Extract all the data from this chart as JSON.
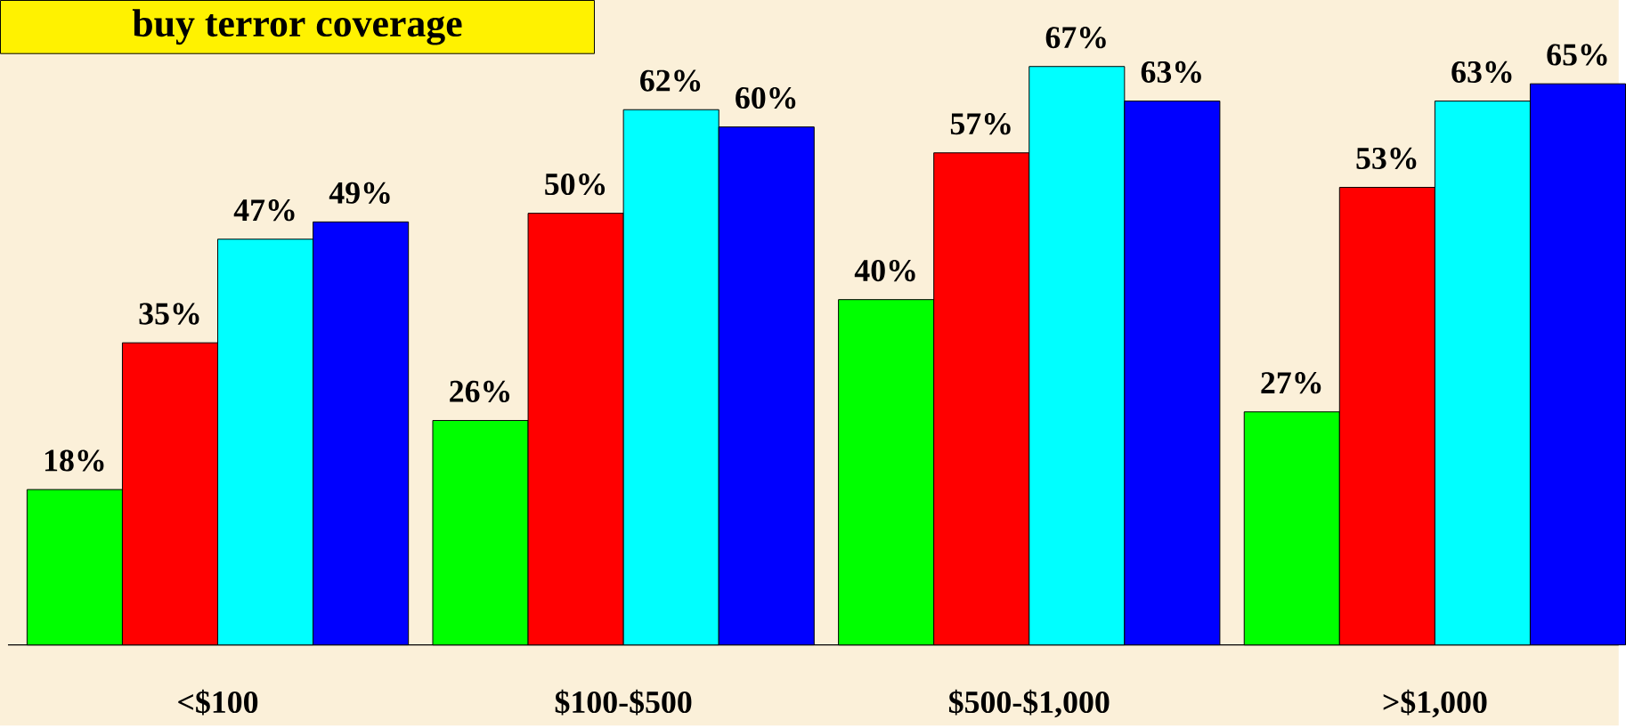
{
  "chart_data": {
    "type": "bar",
    "title": "buy terror coverage",
    "categories": [
      "<$100",
      "$100-$500",
      "$500-$1,000",
      ">$1,000"
    ],
    "series": [
      {
        "color": "#00ff00",
        "values": [
          18,
          26,
          40,
          27
        ],
        "value_labels": [
          "18%",
          "26%",
          "40%",
          "27%"
        ]
      },
      {
        "color": "#ff0000",
        "values": [
          35,
          50,
          57,
          53
        ],
        "value_labels": [
          "35%",
          "50%",
          "57%",
          "53%"
        ]
      },
      {
        "color": "#00ffff",
        "values": [
          47,
          62,
          67,
          63
        ],
        "value_labels": [
          "47%",
          "62%",
          "67%",
          "63%"
        ]
      },
      {
        "color": "#0000ff",
        "values": [
          49,
          60,
          63,
          65
        ],
        "value_labels": [
          "49%",
          "60%",
          "63%",
          "65%"
        ]
      }
    ]
  }
}
